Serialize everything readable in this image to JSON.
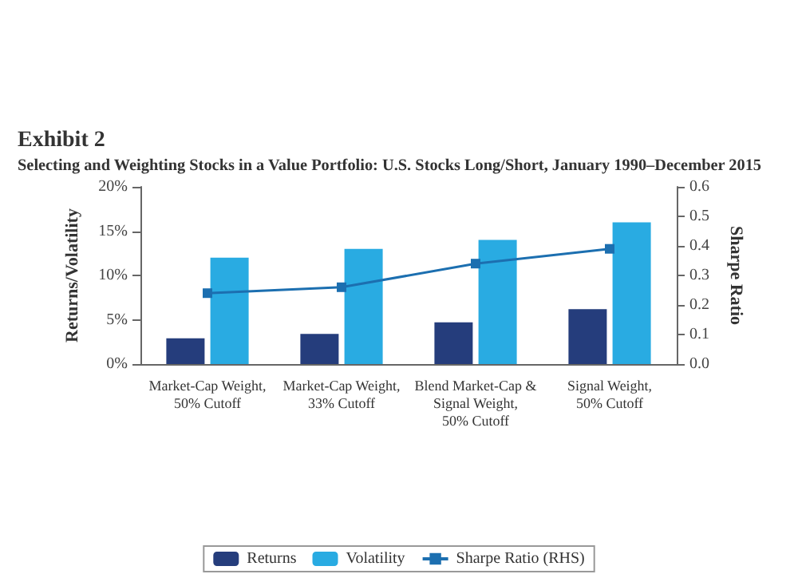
{
  "chart_data": {
    "type": "bar",
    "title": "Exhibit 2",
    "subtitle": "Selecting and Weighting Stocks in a Value Portfolio: U.S. Stocks Long/Short, January 1990–December 2015",
    "ylabel": "Returns/Volatility",
    "y2label": "Sharpe Ratio",
    "categories": [
      "Market-Cap Weight,\n50% Cutoff",
      "Market-Cap Weight,\n33% Cutoff",
      "Blend Market-Cap &\nSignal Weight,\n50% Cutoff",
      "Signal Weight,\n50% Cutoff"
    ],
    "series": [
      {
        "name": "Returns",
        "color": "#253d7c",
        "values": [
          2.9,
          3.4,
          4.7,
          6.2
        ]
      },
      {
        "name": "Volatility",
        "color": "#29abe2",
        "values": [
          12,
          13,
          14,
          16
        ]
      },
      {
        "name": "Sharpe Ratio (RHS)",
        "type": "line",
        "axis": "y2",
        "color": "#1c6fb0",
        "marker": "square",
        "values": [
          0.24,
          0.26,
          0.34,
          0.39
        ]
      }
    ],
    "ylim": [
      0,
      20
    ],
    "yticks": [
      {
        "value": 0,
        "label": "0%"
      },
      {
        "value": 5,
        "label": "5%"
      },
      {
        "value": 10,
        "label": "10%"
      },
      {
        "value": 15,
        "label": "15%"
      },
      {
        "value": 20,
        "label": "20%"
      }
    ],
    "y2lim": [
      0,
      0.6
    ],
    "y2ticks": [
      {
        "value": 0,
        "label": "0.0"
      },
      {
        "value": 0.1,
        "label": "0.1"
      },
      {
        "value": 0.2,
        "label": "0.2"
      },
      {
        "value": 0.3,
        "label": "0.3"
      },
      {
        "value": 0.4,
        "label": "0.4"
      },
      {
        "value": 0.5,
        "label": "0.5"
      },
      {
        "value": 0.6,
        "label": "0.6"
      }
    ],
    "grid": false,
    "legend": "bottom"
  }
}
